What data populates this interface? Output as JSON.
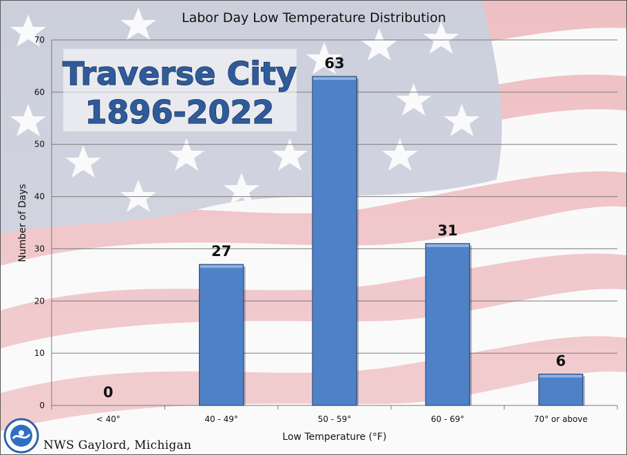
{
  "chart_data": {
    "type": "bar",
    "title": "Labor Day Low Temperature Distribution",
    "xlabel": "Low Temperature (°F)",
    "ylabel": "Number of Days",
    "categories": [
      "< 40°",
      "40 - 49°",
      "50 - 59°",
      "60 - 69°",
      "70° or above"
    ],
    "values": [
      0,
      27,
      63,
      31,
      6
    ],
    "ylim": [
      0,
      70
    ],
    "yticks": [
      0,
      10,
      20,
      30,
      40,
      50,
      60,
      70
    ],
    "grid": true,
    "legend": "none",
    "bar_color": "#4f81c7"
  },
  "overlay": {
    "line1": "Traverse City",
    "line2": "1896-2022"
  },
  "footer": {
    "credit": "NWS Gaylord, Michigan"
  },
  "colors": {
    "flag_red": "#cc3b46",
    "flag_blue": "#3b4a7c"
  }
}
